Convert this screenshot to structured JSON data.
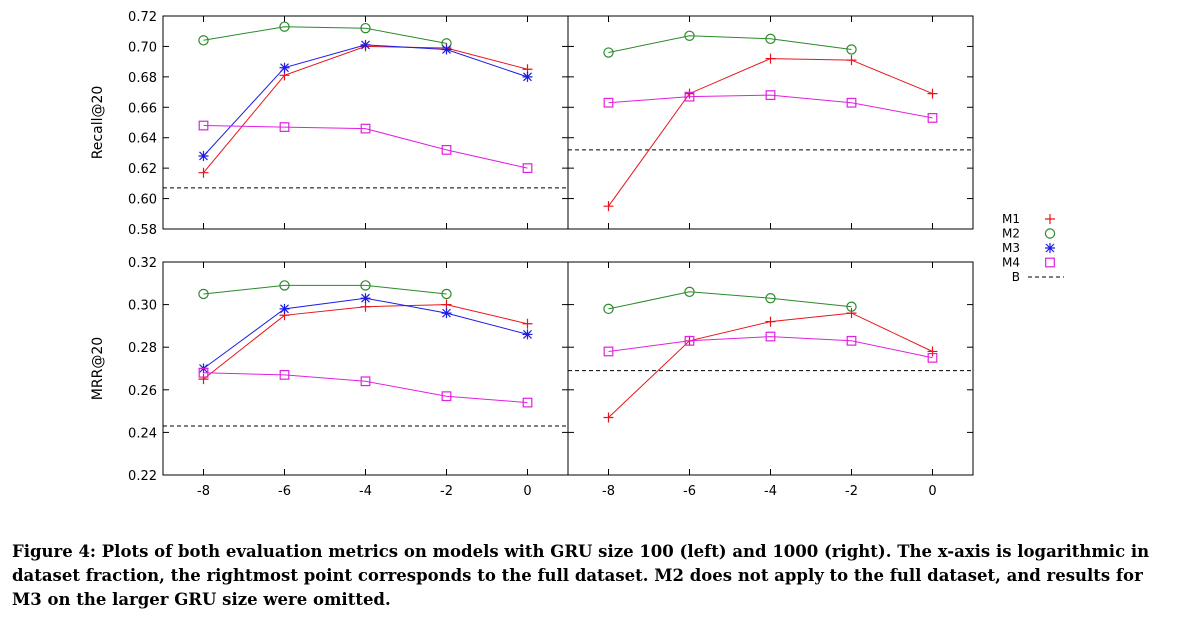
{
  "caption": "Figure 4: Plots of both evaluation metrics on models with GRU size 100 (left) and 1000 (right). The x-axis is logarithmic in dataset fraction, the rightmost point corresponds to the full dataset. M2 does not apply to the full dataset, and results for M3 on the larger GRU size were omitted.",
  "colors": {
    "M1": "#e8141c",
    "M2": "#2a8a2a",
    "M3": "#1c1ce8",
    "M4": "#e020e0",
    "B": "#000000"
  },
  "legend": [
    {
      "name": "M1",
      "marker": "plus"
    },
    {
      "name": "M2",
      "marker": "circle"
    },
    {
      "name": "M3",
      "marker": "star"
    },
    {
      "name": "M4",
      "marker": "square"
    },
    {
      "name": "B",
      "marker": "dashed"
    }
  ],
  "chart_data": [
    {
      "type": "line",
      "panel": "top-left",
      "ylabel": "Recall@20",
      "ylim": [
        0.58,
        0.72
      ],
      "yticks": [
        "0.58",
        "0.60",
        "0.62",
        "0.64",
        "0.66",
        "0.68",
        "0.70",
        "0.72"
      ],
      "xlim": [
        -9,
        1
      ],
      "xticks": [],
      "series": [
        {
          "name": "M1",
          "x": [
            -8,
            -6,
            -4,
            -2,
            0
          ],
          "y": [
            0.617,
            0.681,
            0.7,
            0.699,
            0.685
          ]
        },
        {
          "name": "M2",
          "x": [
            -8,
            -6,
            -4,
            -2
          ],
          "y": [
            0.704,
            0.713,
            0.712,
            0.702
          ]
        },
        {
          "name": "M3",
          "x": [
            -8,
            -6,
            -4,
            -2,
            0
          ],
          "y": [
            0.628,
            0.686,
            0.701,
            0.698,
            0.68
          ]
        },
        {
          "name": "M4",
          "x": [
            -8,
            -6,
            -4,
            -2,
            0
          ],
          "y": [
            0.648,
            0.647,
            0.646,
            0.632,
            0.62
          ]
        }
      ],
      "baseline": 0.607
    },
    {
      "type": "line",
      "panel": "top-right",
      "ylabel": "",
      "ylim": [
        0.58,
        0.72
      ],
      "yticks": [],
      "xlim": [
        -9,
        1
      ],
      "xticks": [],
      "series": [
        {
          "name": "M1",
          "x": [
            -8,
            -6,
            -4,
            -2,
            0
          ],
          "y": [
            0.595,
            0.669,
            0.692,
            0.691,
            0.669
          ]
        },
        {
          "name": "M2",
          "x": [
            -8,
            -6,
            -4,
            -2
          ],
          "y": [
            0.696,
            0.707,
            0.705,
            0.698
          ]
        },
        {
          "name": "M4",
          "x": [
            -8,
            -6,
            -4,
            -2,
            0
          ],
          "y": [
            0.663,
            0.667,
            0.668,
            0.663,
            0.653
          ]
        }
      ],
      "baseline": 0.632
    },
    {
      "type": "line",
      "panel": "bottom-left",
      "ylabel": "MRR@20",
      "ylim": [
        0.22,
        0.32
      ],
      "yticks": [
        "0.22",
        "0.24",
        "0.26",
        "0.28",
        "0.30",
        "0.32"
      ],
      "xlim": [
        -9,
        1
      ],
      "xticks": [
        "-8",
        "-6",
        "-4",
        "-2",
        "0"
      ],
      "series": [
        {
          "name": "M1",
          "x": [
            -8,
            -6,
            -4,
            -2,
            0
          ],
          "y": [
            0.265,
            0.295,
            0.299,
            0.3,
            0.291
          ]
        },
        {
          "name": "M2",
          "x": [
            -8,
            -6,
            -4,
            -2
          ],
          "y": [
            0.305,
            0.309,
            0.309,
            0.305
          ]
        },
        {
          "name": "M3",
          "x": [
            -8,
            -6,
            -4,
            -2,
            0
          ],
          "y": [
            0.27,
            0.298,
            0.303,
            0.296,
            0.286
          ]
        },
        {
          "name": "M4",
          "x": [
            -8,
            -6,
            -4,
            -2,
            0
          ],
          "y": [
            0.268,
            0.267,
            0.264,
            0.257,
            0.254
          ]
        }
      ],
      "baseline": 0.243
    },
    {
      "type": "line",
      "panel": "bottom-right",
      "ylabel": "",
      "ylim": [
        0.22,
        0.32
      ],
      "yticks": [],
      "xlim": [
        -9,
        1
      ],
      "xticks": [
        "-8",
        "-6",
        "-4",
        "-2",
        "0"
      ],
      "series": [
        {
          "name": "M1",
          "x": [
            -8,
            -6,
            -4,
            -2,
            0
          ],
          "y": [
            0.247,
            0.283,
            0.292,
            0.296,
            0.278
          ]
        },
        {
          "name": "M2",
          "x": [
            -8,
            -6,
            -4,
            -2
          ],
          "y": [
            0.298,
            0.306,
            0.303,
            0.299
          ]
        },
        {
          "name": "M4",
          "x": [
            -8,
            -6,
            -4,
            -2,
            0
          ],
          "y": [
            0.278,
            0.283,
            0.285,
            0.283,
            0.275
          ]
        }
      ],
      "baseline": 0.269
    }
  ]
}
